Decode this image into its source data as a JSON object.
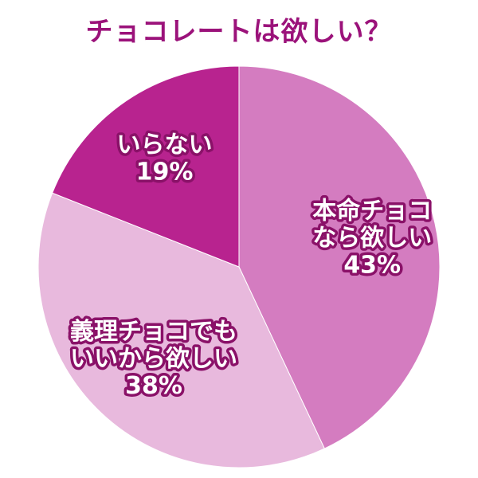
{
  "title": "チョコレートは欲しい？",
  "colors": {
    "title": "#9b127a",
    "outline": "#8a1168"
  },
  "chart_data": {
    "type": "pie",
    "title": "チョコレートは欲しい？",
    "start": "12 o'clock",
    "direction": "clockwise",
    "slices": [
      {
        "label_lines": [
          "本命チョコ",
          "なら欲しい",
          "43%"
        ],
        "value": 43,
        "color": "#d47cc0"
      },
      {
        "label_lines": [
          "義理チョコでも",
          "いいから欲しい",
          "38%"
        ],
        "value": 38,
        "color": "#e8b9dd"
      },
      {
        "label_lines": [
          "いらない",
          "19%"
        ],
        "value": 19,
        "color": "#b8238f"
      }
    ]
  }
}
